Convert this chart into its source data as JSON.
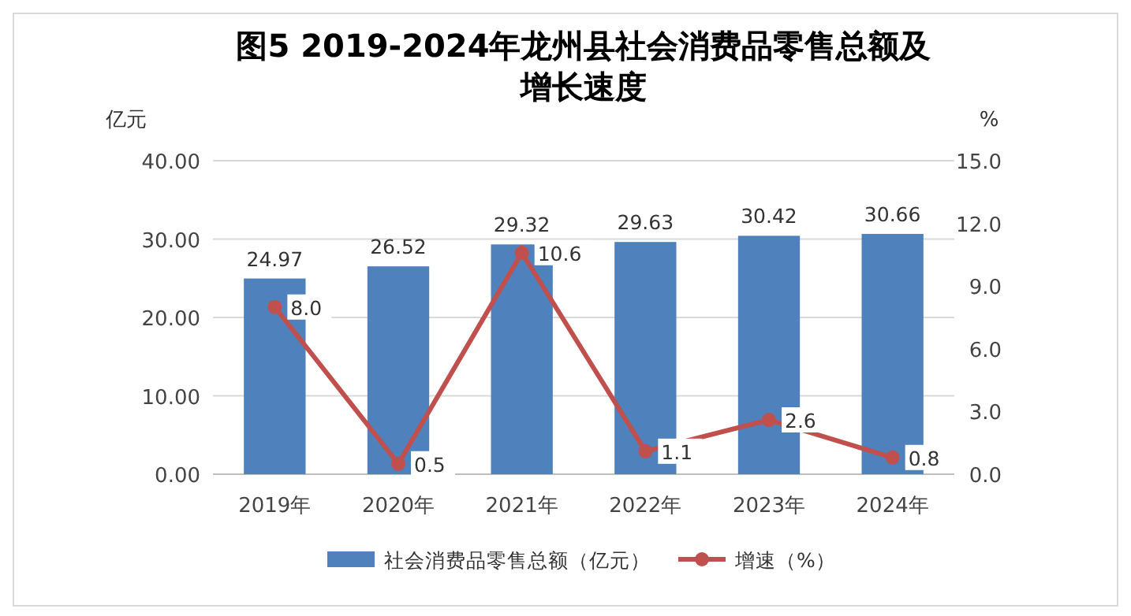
{
  "chart_data": {
    "type": "bar",
    "title": "图5 2019-2024年龙州县社会消费品零售总额及增长速度",
    "ylabel": "亿元",
    "y2label": "%",
    "categories": [
      "2019年",
      "2020年",
      "2021年",
      "2022年",
      "2023年",
      "2024年"
    ],
    "series": [
      {
        "name": "社会消费品零售总额（亿元）",
        "color": "#4f81bd",
        "values": [
          24.97,
          26.52,
          29.32,
          29.63,
          30.42,
          30.66
        ],
        "value_labels": [
          "24.97",
          "26.52",
          "29.32",
          "29.63",
          "30.42",
          "30.66"
        ]
      },
      {
        "name": "增速（%）",
        "type": "line",
        "axis": "y2",
        "color": "#c0504d",
        "values": [
          8.0,
          0.5,
          10.6,
          1.1,
          2.6,
          0.8
        ],
        "value_labels": [
          "8.0",
          "0.5",
          "10.6",
          "1.1",
          "2.6",
          "0.8"
        ],
        "marker": "circle"
      }
    ],
    "ylim": [
      0,
      40
    ],
    "yticks": [
      {
        "value": 0,
        "label": "0.00"
      },
      {
        "value": 10,
        "label": "10.00"
      },
      {
        "value": 20,
        "label": "20.00"
      },
      {
        "value": 30,
        "label": "30.00"
      },
      {
        "value": 40,
        "label": "40.00"
      }
    ],
    "y2lim": [
      0,
      15
    ],
    "y2ticks": [
      {
        "value": 0,
        "label": "0.0"
      },
      {
        "value": 3,
        "label": "3.0"
      },
      {
        "value": 6,
        "label": "6.0"
      },
      {
        "value": 9,
        "label": "9.0"
      },
      {
        "value": 12,
        "label": "12.0"
      },
      {
        "value": 15,
        "label": "15.0"
      }
    ],
    "grid": "y",
    "legend": "bottom"
  }
}
